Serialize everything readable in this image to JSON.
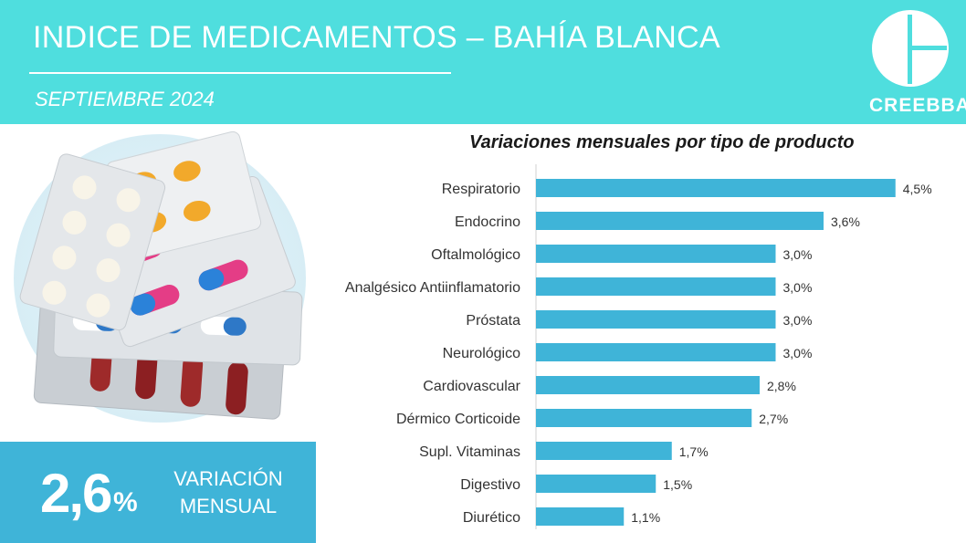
{
  "header": {
    "title": "INDICE DE MEDICAMENTOS – BAHÍA BLANCA",
    "subtitle": "SEPTIEMBRE 2024",
    "brand": "CREEBBA",
    "bg_color": "#4fdede"
  },
  "kpi": {
    "value": "2,6",
    "unit": "%",
    "label_line1": "VARIACIÓN",
    "label_line2": "MENSUAL",
    "bg_color": "#3fb4d8"
  },
  "illustration": {
    "icon": "medicine-pills-blister-icon"
  },
  "chart_data": {
    "type": "bar",
    "orientation": "horizontal",
    "title": "Variaciones mensuales por tipo de producto",
    "xlabel": "",
    "ylabel": "",
    "xlim": [
      0,
      4.8
    ],
    "grid": false,
    "bar_color": "#3fb4d8",
    "categories": [
      "Respiratorio",
      "Endocrino",
      "Oftalmológico",
      "Analgésico Antiinflamatorio",
      "Próstata",
      "Neurológico",
      "Cardiovascular",
      "Dérmico Corticoide",
      "Supl. Vitaminas",
      "Digestivo",
      "Diurético"
    ],
    "values": [
      4.5,
      3.6,
      3.0,
      3.0,
      3.0,
      3.0,
      2.8,
      2.7,
      1.7,
      1.5,
      1.1
    ],
    "value_labels": [
      "4,5%",
      "3,6%",
      "3,0%",
      "3,0%",
      "3,0%",
      "3,0%",
      "2,8%",
      "2,7%",
      "1,7%",
      "1,5%",
      "1,1%"
    ]
  }
}
